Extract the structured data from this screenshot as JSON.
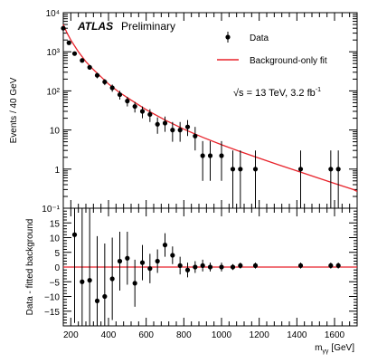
{
  "chart_data": [
    {
      "type": "scatter",
      "panel": "main",
      "title": "",
      "xlabel": "",
      "ylabel": "Events / 40 GeV",
      "xlim": [
        160,
        1720
      ],
      "ylim": [
        0.1,
        10000
      ],
      "yscale": "log",
      "x_ticks": [
        200,
        400,
        600,
        800,
        1000,
        1200,
        1400,
        1600
      ],
      "x_tick_labels": [
        "",
        "",
        "",
        "",
        "",
        "",
        "",
        ""
      ],
      "y_ticks": [
        0.1,
        1,
        10,
        100,
        1000,
        10000
      ],
      "y_tick_labels": [
        "10⁻¹",
        "1",
        "10",
        "10²",
        "10³",
        "10⁴"
      ],
      "grid": false,
      "legend_position": "top-right",
      "legend": [
        {
          "label": "Data",
          "marker": "point"
        },
        {
          "label": "Background-only fit",
          "marker": "line",
          "color": "#e8222a"
        }
      ],
      "atlas_label": "ATLAS",
      "atlas_sub": "Preliminary",
      "energy_label": "√s = 13 TeV, 3.2 fb",
      "energy_sup": "-1",
      "series": [
        {
          "name": "Data",
          "marker": "point",
          "color": "#000000",
          "x": [
            160,
            190,
            220,
            260,
            300,
            340,
            380,
            420,
            460,
            500,
            540,
            580,
            620,
            660,
            700,
            740,
            780,
            820,
            860,
            900,
            940,
            1000,
            1060,
            1100,
            1180,
            1420,
            1580,
            1620
          ],
          "y": [
            4000,
            1700,
            900,
            600,
            400,
            250,
            170,
            120,
            80,
            55,
            40,
            30,
            25,
            14,
            15,
            10,
            10,
            12,
            7,
            2.2,
            2.2,
            2.2,
            1.0,
            1.0,
            1.0,
            1.0,
            1.0,
            1.0
          ],
          "err_low": [
            300,
            150,
            90,
            60,
            50,
            40,
            30,
            25,
            20,
            15,
            12,
            10,
            9,
            6,
            6,
            5,
            5,
            5,
            4,
            1.7,
            1.7,
            1.7,
            0.9,
            0.9,
            0.9,
            0.9,
            0.9,
            0.9
          ],
          "err_high": [
            300,
            150,
            90,
            60,
            50,
            40,
            30,
            25,
            20,
            15,
            12,
            10,
            9,
            7,
            7,
            6,
            6,
            6,
            5,
            3,
            3,
            3,
            2,
            2,
            2,
            2,
            2,
            2
          ]
        },
        {
          "name": "Background-only fit",
          "marker": "line",
          "color": "#e8222a",
          "x": [
            160,
            180,
            200,
            240,
            280,
            320,
            360,
            400,
            460,
            520,
            600,
            700,
            800,
            900,
            1000,
            1100,
            1200,
            1300,
            1400,
            1500,
            1600,
            1700,
            1720
          ],
          "y": [
            5000,
            3000,
            2000,
            1000,
            560,
            350,
            230,
            150,
            90,
            58,
            33,
            18,
            10.5,
            6.5,
            4.2,
            2.8,
            1.9,
            1.3,
            0.9,
            0.62,
            0.43,
            0.3,
            0.27
          ]
        }
      ]
    },
    {
      "type": "scatter",
      "panel": "residual",
      "title": "",
      "xlabel": "m",
      "xlabel_sub": "γγ",
      "xlabel_unit": "[GeV]",
      "ylabel": "Data - fitted background",
      "xlim": [
        160,
        1720
      ],
      "ylim": [
        -20,
        20
      ],
      "x_ticks": [
        200,
        400,
        600,
        800,
        1000,
        1200,
        1400,
        1600
      ],
      "x_tick_labels": [
        "200",
        "400",
        "600",
        "800",
        "1000",
        "1200",
        "1400",
        "1600"
      ],
      "y_ticks": [
        -15,
        -10,
        -5,
        0,
        5,
        10,
        15
      ],
      "y_tick_labels": [
        "−15",
        "−10",
        "−5",
        "0",
        "5",
        "10",
        "15"
      ],
      "grid": false,
      "series": [
        {
          "name": "Data",
          "marker": "point",
          "color": "#000000",
          "x": [
            220,
            260,
            300,
            340,
            380,
            420,
            460,
            500,
            540,
            580,
            620,
            660,
            700,
            740,
            780,
            820,
            860,
            900,
            940,
            1000,
            1060,
            1100,
            1180,
            1420,
            1580,
            1620
          ],
          "y": [
            11,
            -5,
            -4.5,
            -11.5,
            -10,
            -4,
            2,
            3,
            -5.5,
            1.5,
            -0.5,
            2,
            7.5,
            4,
            0.5,
            -1,
            0,
            0.5,
            0,
            0,
            0,
            0.5,
            0.5,
            0.5,
            0.5,
            0.5
          ],
          "err": [
            30,
            30,
            25,
            22,
            18,
            14,
            10,
            9,
            8,
            6,
            5,
            4,
            4,
            3,
            3,
            2.5,
            2,
            2,
            1.5,
            1.5,
            1,
            1,
            1,
            1,
            1,
            1
          ]
        },
        {
          "name": "Background-only fit",
          "marker": "line",
          "color": "#e8222a",
          "x": [
            160,
            1720
          ],
          "y": [
            0,
            0
          ]
        }
      ]
    }
  ]
}
